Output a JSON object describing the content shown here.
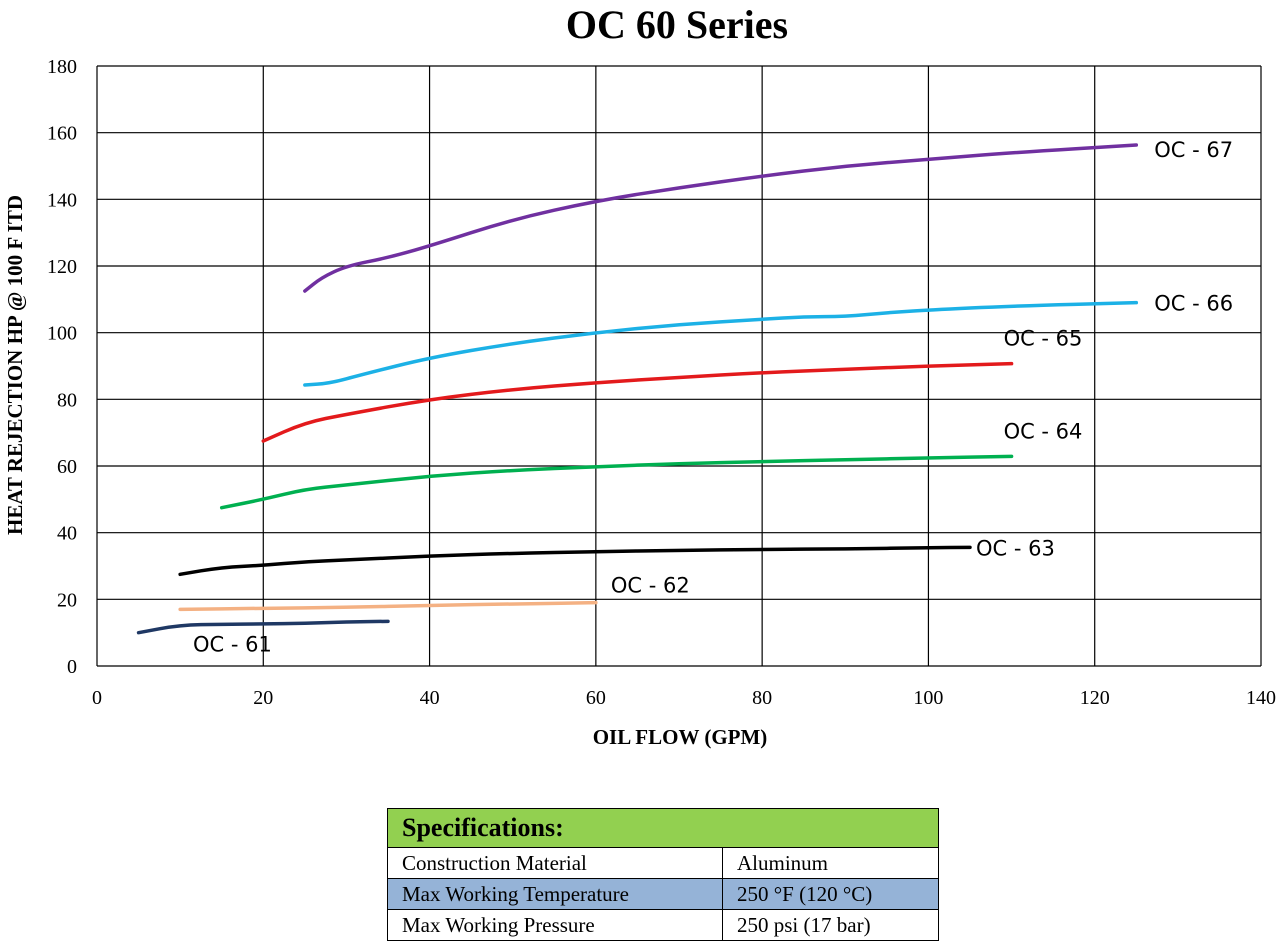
{
  "chart_data": {
    "type": "line",
    "title": "OC 60 Series",
    "xlabel": "OIL FLOW (GPM)",
    "ylabel": "HEAT REJECTION  HP @ 100 F ITD",
    "xlim": [
      0,
      140
    ],
    "ylim": [
      0,
      180
    ],
    "xticks": [
      0,
      20,
      40,
      60,
      80,
      100,
      120,
      140
    ],
    "yticks": [
      0,
      20,
      40,
      60,
      80,
      100,
      120,
      140,
      160,
      180
    ],
    "grid": true,
    "legend": "none",
    "series": [
      {
        "name": "OC - 61",
        "color": "#1f3864",
        "x": [
          5,
          10,
          15,
          20,
          25,
          30,
          35
        ],
        "y": [
          10,
          12.3,
          12.5,
          12.6,
          12.8,
          13.2,
          13.4
        ]
      },
      {
        "name": "OC - 62",
        "color": "#f4b183",
        "x": [
          10,
          20,
          30,
          40,
          50,
          60
        ],
        "y": [
          17,
          17.3,
          17.6,
          18.2,
          18.6,
          19
        ]
      },
      {
        "name": "OC - 63",
        "color": "#000000",
        "x": [
          10,
          15,
          20,
          25,
          30,
          40,
          50,
          60,
          70,
          80,
          90,
          100,
          105
        ],
        "y": [
          27.5,
          29.6,
          30.2,
          31.3,
          31.8,
          33,
          33.8,
          34.3,
          34.7,
          35,
          35.1,
          35.5,
          35.6
        ]
      },
      {
        "name": "OC - 64",
        "color": "#00b050",
        "x": [
          15,
          20,
          25,
          30,
          40,
          50,
          60,
          70,
          80,
          90,
          100,
          110
        ],
        "y": [
          47.5,
          50,
          53,
          54.3,
          57,
          58.7,
          59.8,
          60.7,
          61.3,
          61.9,
          62.4,
          62.9
        ]
      },
      {
        "name": "OC - 65",
        "color": "#e31a1c",
        "x": [
          20,
          25,
          30,
          40,
          50,
          60,
          70,
          80,
          90,
          100,
          110
        ],
        "y": [
          67.5,
          73,
          75.5,
          80,
          83,
          85,
          86.6,
          88,
          89,
          90,
          90.7
        ]
      },
      {
        "name": "OC - 66",
        "color": "#1cb1e6",
        "x": [
          25,
          28,
          32,
          40,
          50,
          60,
          70,
          80,
          85,
          90,
          95,
          100,
          110,
          125
        ],
        "y": [
          84.3,
          84.8,
          87.5,
          92.5,
          96.8,
          100,
          102.5,
          104,
          104.8,
          104.8,
          106,
          106.8,
          108,
          109
        ]
      },
      {
        "name": "OC - 67",
        "color": "#7030a0",
        "x": [
          25,
          27,
          30,
          35,
          40,
          50,
          60,
          70,
          80,
          90,
          100,
          110,
          125
        ],
        "y": [
          112.5,
          116.5,
          120,
          122.5,
          126,
          134,
          139.5,
          143.5,
          147,
          150,
          152,
          154,
          156.3
        ]
      }
    ]
  },
  "specs": {
    "header": "Specifications:",
    "rows": [
      {
        "label": "Construction Material",
        "value": "Aluminum"
      },
      {
        "label": "Max Working Temperature",
        "value": "250 °F   (120 °C)"
      },
      {
        "label": "Max Working Pressure",
        "value": "250 psi  (17 bar)"
      }
    ]
  }
}
